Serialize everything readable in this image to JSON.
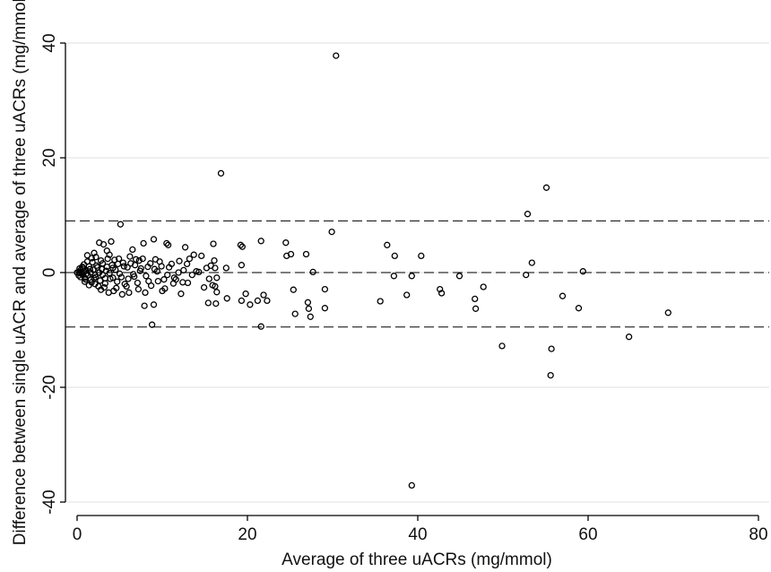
{
  "chart_data": {
    "type": "scatter",
    "xlabel": "Average of three uACRs (mg/mmol)",
    "ylabel": "Difference between single uACR and average of three uACRs (mg/mmol)",
    "xlim": [
      -1.5,
      81.5
    ],
    "ylim": [
      -42,
      42
    ],
    "x_ticks": [
      0,
      20,
      40,
      60,
      80
    ],
    "y_ticks": [
      -40,
      -20,
      0,
      20,
      40
    ],
    "x_tick_labels": [
      "0",
      "20",
      "40",
      "60",
      "80"
    ],
    "y_tick_labels": [
      "-40",
      "-20",
      "0",
      "20",
      "40"
    ],
    "grid": "horizontal",
    "reference_lines": [
      {
        "name": "upper limit",
        "value": 9.0,
        "style": "dashed"
      },
      {
        "name": "mean difference",
        "value": 0.0,
        "style": "dashed"
      },
      {
        "name": "lower limit",
        "value": -9.5,
        "style": "dashed"
      }
    ],
    "colors": {
      "marker": "#000000",
      "grid": "#e6e6e6",
      "axis": "#000000",
      "reference": "#000000"
    },
    "marker": "hollow-circle",
    "points": [
      [
        30.4,
        37.8
      ],
      [
        16.9,
        17.3
      ],
      [
        39.3,
        -37.1
      ],
      [
        55.1,
        14.8
      ],
      [
        52.9,
        10.2
      ],
      [
        29.9,
        7.1
      ],
      [
        36.4,
        4.8
      ],
      [
        37.3,
        2.9
      ],
      [
        40.4,
        2.9
      ],
      [
        37.2,
        -0.6
      ],
      [
        38.7,
        -3.9
      ],
      [
        39.3,
        -0.6
      ],
      [
        35.6,
        -5.0
      ],
      [
        42.6,
        -2.9
      ],
      [
        42.8,
        -3.6
      ],
      [
        44.9,
        -0.6
      ],
      [
        46.7,
        -4.6
      ],
      [
        46.8,
        -6.3
      ],
      [
        47.7,
        -2.5
      ],
      [
        49.9,
        -12.8
      ],
      [
        52.7,
        -0.4
      ],
      [
        53.4,
        1.7
      ],
      [
        55.7,
        -13.3
      ],
      [
        55.6,
        -17.9
      ],
      [
        57.0,
        -4.1
      ],
      [
        58.9,
        -6.2
      ],
      [
        59.4,
        0.2
      ],
      [
        64.8,
        -11.2
      ],
      [
        69.4,
        -7.0
      ],
      [
        24.5,
        5.2
      ],
      [
        24.6,
        2.9
      ],
      [
        25.1,
        3.2
      ],
      [
        25.4,
        -3.0
      ],
      [
        25.6,
        -7.2
      ],
      [
        26.9,
        3.2
      ],
      [
        27.1,
        -5.2
      ],
      [
        27.2,
        -6.3
      ],
      [
        27.4,
        -7.7
      ],
      [
        27.7,
        0.1
      ],
      [
        29.1,
        -2.9
      ],
      [
        29.1,
        -6.2
      ],
      [
        19.2,
        4.8
      ],
      [
        19.4,
        4.5
      ],
      [
        19.3,
        1.3
      ],
      [
        19.8,
        -3.7
      ],
      [
        19.3,
        -4.9
      ],
      [
        20.3,
        -5.6
      ],
      [
        21.2,
        -4.9
      ],
      [
        21.6,
        5.5
      ],
      [
        21.6,
        -9.4
      ],
      [
        21.9,
        -3.9
      ],
      [
        22.3,
        -4.9
      ],
      [
        17.5,
        0.8
      ],
      [
        17.6,
        -4.5
      ],
      [
        16.0,
        5.0
      ],
      [
        16.1,
        2.1
      ],
      [
        16.2,
        0.8
      ],
      [
        16.4,
        -0.9
      ],
      [
        16.2,
        -2.4
      ],
      [
        16.4,
        -3.4
      ],
      [
        16.3,
        -5.4
      ],
      [
        15.9,
        -2.2
      ],
      [
        15.4,
        -5.3
      ],
      [
        15.7,
        1.2
      ],
      [
        15.2,
        0.8
      ],
      [
        14.9,
        -2.6
      ],
      [
        14.0,
        0.2
      ],
      [
        13.7,
        3.1
      ],
      [
        13.5,
        -0.4
      ],
      [
        13.2,
        2.4
      ],
      [
        12.7,
        4.4
      ],
      [
        12.9,
        1.5
      ],
      [
        12.4,
        -1.7
      ],
      [
        12.2,
        -3.7
      ],
      [
        12.0,
        2.0
      ],
      [
        11.9,
        0.0
      ],
      [
        11.4,
        -0.9
      ],
      [
        11.3,
        -1.9
      ],
      [
        10.7,
        4.8
      ],
      [
        10.5,
        5.1
      ],
      [
        10.8,
        0.9
      ],
      [
        10.3,
        -2.8
      ],
      [
        10.2,
        -1.2
      ],
      [
        9.7,
        1.9
      ],
      [
        9.4,
        0.2
      ],
      [
        9.2,
        2.3
      ],
      [
        9.0,
        5.8
      ],
      [
        9.0,
        -5.6
      ],
      [
        8.8,
        -9.1
      ],
      [
        8.6,
        1.6
      ],
      [
        8.4,
        -1.5
      ],
      [
        8.0,
        -3.5
      ],
      [
        7.8,
        5.1
      ],
      [
        7.9,
        -5.8
      ],
      [
        7.5,
        0.7
      ],
      [
        7.3,
        2.1
      ],
      [
        7.2,
        -2.9
      ],
      [
        6.8,
        1.3
      ],
      [
        6.7,
        -0.7
      ],
      [
        6.5,
        4.0
      ],
      [
        6.2,
        2.8
      ],
      [
        6.0,
        -1.1
      ],
      [
        5.8,
        -2.4
      ],
      [
        5.5,
        1.1
      ],
      [
        5.3,
        -3.8
      ],
      [
        5.1,
        8.4
      ],
      [
        5.0,
        -0.2
      ],
      [
        4.8,
        1.5
      ],
      [
        4.6,
        -2.7
      ],
      [
        4.4,
        2.2
      ],
      [
        4.2,
        -0.9
      ],
      [
        4.0,
        5.4
      ],
      [
        3.8,
        3.1
      ],
      [
        3.7,
        -3.5
      ],
      [
        3.5,
        1.0
      ],
      [
        3.3,
        -1.9
      ],
      [
        3.1,
        4.9
      ],
      [
        3.0,
        -0.4
      ],
      [
        2.8,
        2.1
      ],
      [
        2.6,
        5.2
      ],
      [
        2.5,
        -2.4
      ],
      [
        2.3,
        1.2
      ],
      [
        2.2,
        -0.8
      ],
      [
        2.0,
        3.4
      ],
      [
        1.8,
        1.8
      ],
      [
        1.7,
        -1.7
      ],
      [
        1.5,
        0.6
      ],
      [
        1.3,
        -0.5
      ],
      [
        1.2,
        1.9
      ],
      [
        1.0,
        0.3
      ],
      [
        0.9,
        -0.9
      ],
      [
        0.7,
        0.8
      ],
      [
        0.6,
        -0.3
      ],
      [
        0.4,
        0.4
      ],
      [
        0.3,
        -0.1
      ],
      [
        0.2,
        0.1
      ],
      [
        0.0,
        0.0
      ],
      [
        0.5,
        0.0
      ],
      [
        0.8,
        0.2
      ],
      [
        1.1,
        -0.2
      ],
      [
        1.4,
        1.1
      ],
      [
        1.6,
        -1.2
      ],
      [
        1.9,
        0.5
      ],
      [
        2.1,
        -0.4
      ],
      [
        2.4,
        0.9
      ],
      [
        2.7,
        -1.4
      ],
      [
        2.9,
        0.6
      ],
      [
        3.2,
        -2.6
      ],
      [
        3.4,
        0.3
      ],
      [
        3.6,
        2.4
      ],
      [
        3.9,
        -1.1
      ],
      [
        4.1,
        1.3
      ],
      [
        4.3,
        -3.2
      ],
      [
        4.5,
        0.5
      ],
      [
        4.7,
        -1.6
      ],
      [
        4.9,
        2.4
      ],
      [
        5.2,
        -0.8
      ],
      [
        5.4,
        1.7
      ],
      [
        5.6,
        -2.0
      ],
      [
        5.9,
        0.9
      ],
      [
        6.1,
        -3.5
      ],
      [
        6.3,
        1.6
      ],
      [
        6.6,
        -0.3
      ],
      [
        6.9,
        2.3
      ],
      [
        7.1,
        -1.8
      ],
      [
        7.4,
        0.3
      ],
      [
        7.7,
        2.4
      ],
      [
        8.1,
        -0.6
      ],
      [
        8.3,
        1.0
      ],
      [
        8.7,
        -2.3
      ],
      [
        9.1,
        0.6
      ],
      [
        9.5,
        -1.5
      ],
      [
        9.9,
        1.1
      ],
      [
        10.0,
        -3.2
      ],
      [
        10.6,
        -0.4
      ],
      [
        11.1,
        1.5
      ],
      [
        11.6,
        -1.2
      ],
      [
        12.5,
        0.4
      ],
      [
        13.0,
        -1.8
      ],
      [
        14.3,
        0.1
      ],
      [
        14.6,
        2.9
      ],
      [
        15.5,
        -1.1
      ],
      [
        1.2,
        3.0
      ],
      [
        1.7,
        2.5
      ],
      [
        2.2,
        2.7
      ],
      [
        0.9,
        -1.6
      ],
      [
        1.4,
        -2.2
      ],
      [
        2.1,
        -2.0
      ],
      [
        2.8,
        -3.0
      ],
      [
        3.5,
        3.8
      ],
      [
        0.6,
        1.0
      ],
      [
        0.3,
        0.7
      ],
      [
        0.2,
        -0.5
      ],
      [
        0.4,
        -0.8
      ],
      [
        0.8,
        1.4
      ],
      [
        1.0,
        -1.2
      ],
      [
        1.6,
        0.0
      ],
      [
        2.0,
        -1.0
      ],
      [
        2.6,
        0.0
      ],
      [
        3.0,
        1.6
      ],
      [
        3.3,
        -1.0
      ],
      [
        3.8,
        -0.1
      ],
      [
        4.2,
        0.8
      ]
    ]
  }
}
